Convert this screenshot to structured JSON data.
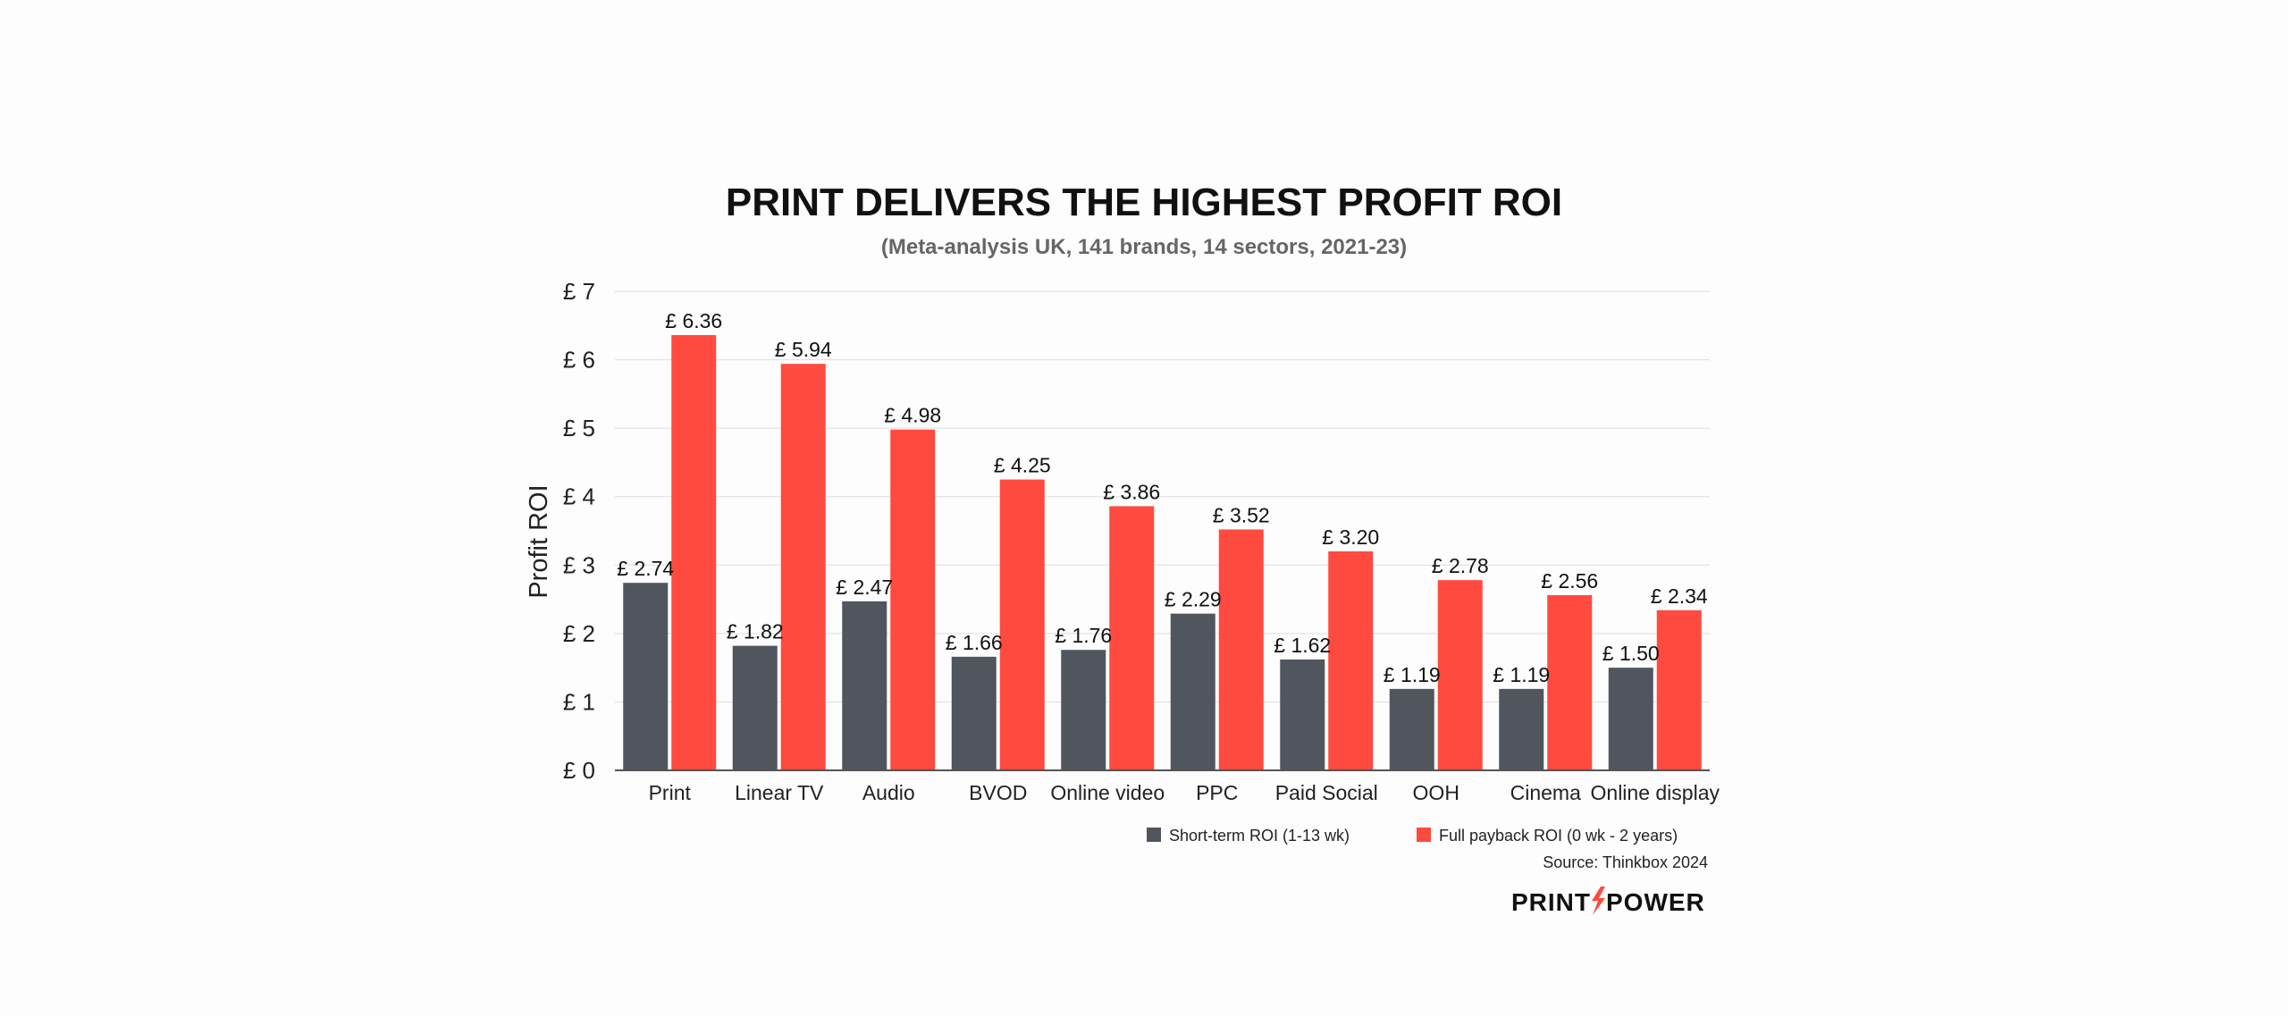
{
  "chart_data": {
    "type": "bar",
    "title": "PRINT DELIVERS THE HIGHEST PROFIT ROI",
    "subtitle": "(Meta-analysis UK, 141 brands, 14 sectors, 2021-23)",
    "ylabel": "Profit ROI",
    "xlabel": "",
    "ylim": [
      0,
      7
    ],
    "yticks": [
      0,
      1,
      2,
      3,
      4,
      5,
      6,
      7
    ],
    "ytick_labels": [
      "£ 0",
      "£ 1",
      "£ 2",
      "£ 3",
      "£ 4",
      "£ 5",
      "£ 6",
      "£ 7"
    ],
    "grid": true,
    "legend_position": "bottom-right",
    "categories": [
      "Print",
      "Linear TV",
      "Audio",
      "BVOD",
      "Online video",
      "PPC",
      "Paid Social",
      "OOH",
      "Cinema",
      "Online display"
    ],
    "series": [
      {
        "name": "Short-term ROI (1-13 wk)",
        "color": "#51555e",
        "values": [
          2.74,
          1.82,
          2.47,
          1.66,
          1.76,
          2.29,
          1.62,
          1.19,
          1.19,
          1.5
        ],
        "labels": [
          "£ 2.74",
          "£ 1.82",
          "£ 2.47",
          "£ 1.66",
          "£ 1.76",
          "£ 2.29",
          "£ 1.62",
          "£ 1.19",
          "£ 1.19",
          "£ 1.50"
        ]
      },
      {
        "name": "Full payback ROI (0 wk - 2 years)",
        "color": "#ff4a3f",
        "values": [
          6.36,
          5.94,
          4.98,
          4.25,
          3.86,
          3.52,
          3.2,
          2.78,
          2.56,
          2.34
        ],
        "labels": [
          "£ 6.36",
          "£ 5.94",
          "£ 4.98",
          "£ 4.25",
          "£ 3.86",
          "£ 3.52",
          "£ 3.20",
          "£ 2.78",
          "£ 2.56",
          "£ 2.34"
        ]
      }
    ],
    "source": "Source: Thinkbox 2024"
  },
  "logo": {
    "left": "PRINT",
    "right": "POWER",
    "accent_color": "#ff4a3f"
  }
}
